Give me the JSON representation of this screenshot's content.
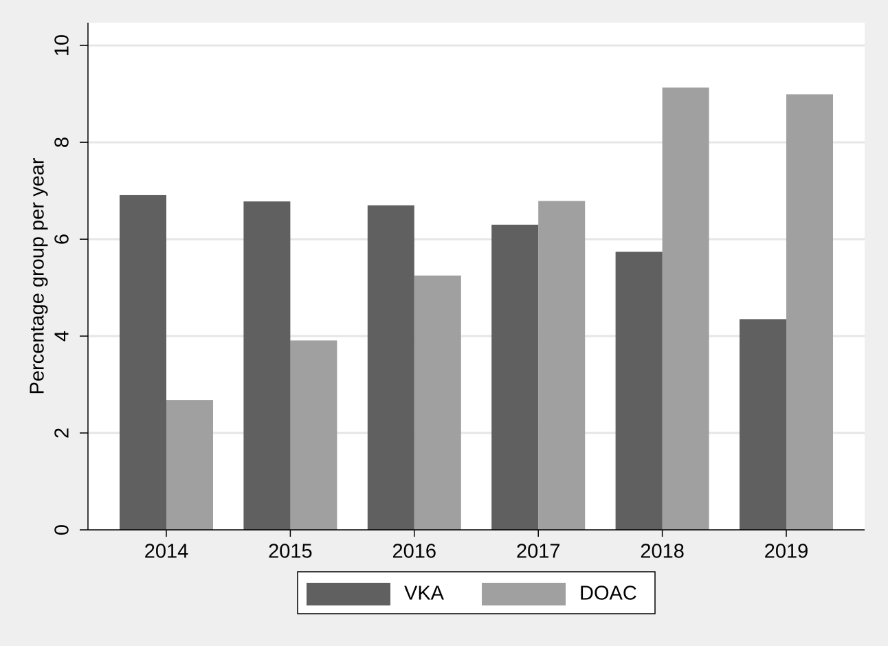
{
  "chart_data": {
    "type": "bar",
    "y_label": "Percentage group per year",
    "categories": [
      "2014",
      "2015",
      "2016",
      "2017",
      "2018",
      "2019"
    ],
    "series": [
      {
        "name": "VKA",
        "color": "#606060",
        "values": [
          6.91,
          6.78,
          6.7,
          6.3,
          5.74,
          4.35
        ]
      },
      {
        "name": "DOAC",
        "color": "#a0a0a0",
        "values": [
          2.68,
          3.91,
          5.25,
          6.79,
          9.13,
          8.99
        ]
      }
    ],
    "ylim": [
      0,
      10.47
    ],
    "yticks": [
      0,
      2,
      4,
      6,
      8,
      10
    ],
    "grid": true,
    "legend": "bottom"
  }
}
